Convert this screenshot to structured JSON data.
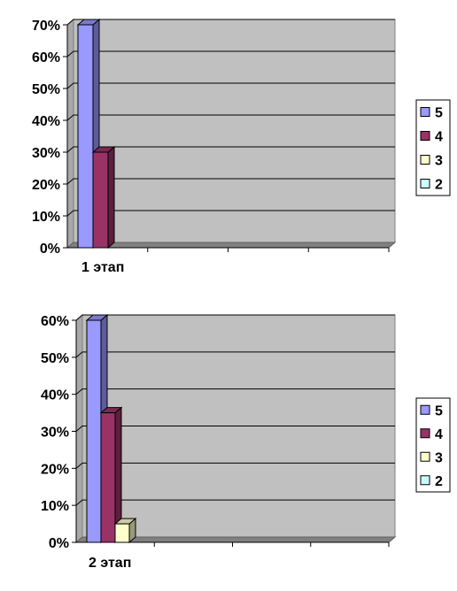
{
  "chart_data": [
    {
      "type": "bar",
      "categories": [
        "1 этап"
      ],
      "series": [
        {
          "name": "5",
          "values": [
            70
          ],
          "color": "#9999ff"
        },
        {
          "name": "4",
          "values": [
            30
          ],
          "color": "#993366"
        },
        {
          "name": "3",
          "values": [
            0
          ],
          "color": "#ffffcc"
        },
        {
          "name": "2",
          "values": [
            0
          ],
          "color": "#ccffff"
        }
      ],
      "y_ticks": [
        "70%",
        "60%",
        "50%",
        "40%",
        "30%",
        "20%",
        "10%",
        "0%"
      ],
      "ylim": [
        0,
        70
      ],
      "grid": true,
      "legend_position": "right",
      "plot_background": "#c0c0c0",
      "style": "3d"
    },
    {
      "type": "bar",
      "categories": [
        "2 этап"
      ],
      "series": [
        {
          "name": "5",
          "values": [
            60
          ],
          "color": "#9999ff"
        },
        {
          "name": "4",
          "values": [
            35
          ],
          "color": "#993366"
        },
        {
          "name": "3",
          "values": [
            5
          ],
          "color": "#ffffcc"
        },
        {
          "name": "2",
          "values": [
            0
          ],
          "color": "#ccffff"
        }
      ],
      "y_ticks": [
        "60%",
        "50%",
        "40%",
        "30%",
        "20%",
        "10%",
        "0%"
      ],
      "ylim": [
        0,
        60
      ],
      "grid": true,
      "legend_position": "right",
      "plot_background": "#c0c0c0",
      "style": "3d"
    }
  ]
}
